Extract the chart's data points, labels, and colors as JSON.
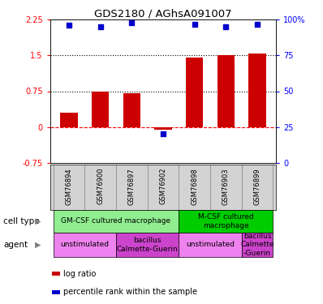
{
  "title": "GDS2180 / AGhsA091007",
  "samples": [
    "GSM76894",
    "GSM76900",
    "GSM76897",
    "GSM76902",
    "GSM76898",
    "GSM76903",
    "GSM76899"
  ],
  "log_ratio": [
    0.3,
    0.75,
    0.7,
    -0.05,
    1.45,
    1.5,
    1.55
  ],
  "percentile_rank": [
    96,
    95,
    98,
    20,
    97,
    95,
    97
  ],
  "ylim_left": [
    -0.75,
    2.25
  ],
  "ylim_right": [
    0,
    100
  ],
  "yticks_left": [
    -0.75,
    0,
    0.75,
    1.5,
    2.25
  ],
  "yticks_right": [
    0,
    25,
    50,
    75,
    100
  ],
  "hlines": [
    0.75,
    1.5
  ],
  "bar_color": "#cc0000",
  "scatter_color": "#0000cc",
  "cell_type_row": {
    "groups": [
      {
        "label": "GM-CSF cultured macrophage",
        "span": [
          0,
          4
        ],
        "color": "#90ee90"
      },
      {
        "label": "M-CSF cultured\nmacrophage",
        "span": [
          4,
          7
        ],
        "color": "#00cc00"
      }
    ]
  },
  "agent_row": {
    "groups": [
      {
        "label": "unstimulated",
        "span": [
          0,
          2
        ],
        "color": "#ee82ee"
      },
      {
        "label": "bacillus\nCalmette-Guerin",
        "span": [
          2,
          4
        ],
        "color": "#cc44cc"
      },
      {
        "label": "unstimulated",
        "span": [
          4,
          6
        ],
        "color": "#ee82ee"
      },
      {
        "label": "bacillus\nCalmette\n-Guerin",
        "span": [
          6,
          7
        ],
        "color": "#cc44cc"
      }
    ]
  },
  "legend_items": [
    {
      "label": "log ratio",
      "color": "#cc0000"
    },
    {
      "label": "percentile rank within the sample",
      "color": "#0000cc"
    }
  ]
}
